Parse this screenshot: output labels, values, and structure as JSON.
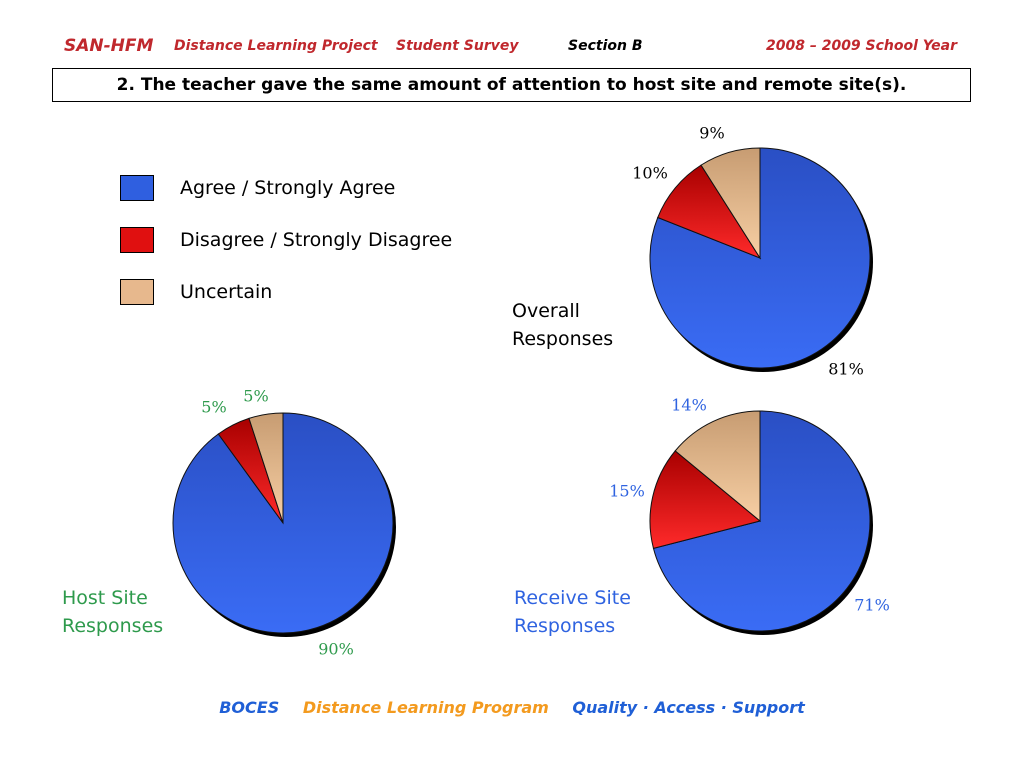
{
  "header": {
    "brand": "SAN-HFM",
    "project": "Distance Learning Project",
    "survey": "Student Survey",
    "section": "Section B",
    "year": "2008 – 2009 School Year"
  },
  "question": "2. The teacher gave the same amount of attention to host site and remote site(s).",
  "legend": [
    {
      "label": "Agree / Strongly Agree",
      "color": "#2f5fe0"
    },
    {
      "label": "Disagree / Strongly Disagree",
      "color": "#e01010"
    },
    {
      "label": "Uncertain",
      "color": "#e7b88d"
    }
  ],
  "chart_data": [
    {
      "type": "pie",
      "title": "Overall Responses",
      "title_lines": [
        "Overall",
        "Responses"
      ],
      "categories": [
        "Agree / Strongly Agree",
        "Disagree / Strongly Disagree",
        "Uncertain"
      ],
      "values": [
        81,
        10,
        9
      ],
      "labels": [
        "81%",
        "10%",
        "9%"
      ],
      "label_color": "#000000"
    },
    {
      "type": "pie",
      "title": "Host Site Responses",
      "title_lines": [
        "Host Site",
        "Responses"
      ],
      "categories": [
        "Agree / Strongly Agree",
        "Disagree / Strongly Disagree",
        "Uncertain"
      ],
      "values": [
        90,
        5,
        5
      ],
      "labels": [
        "90%",
        "5%",
        "5%"
      ],
      "label_color": "#2e9a4c"
    },
    {
      "type": "pie",
      "title": "Receive Site Responses",
      "title_lines": [
        "Receive Site",
        "Responses"
      ],
      "categories": [
        "Agree / Strongly Agree",
        "Disagree / Strongly Disagree",
        "Uncertain"
      ],
      "values": [
        71,
        15,
        14
      ],
      "labels": [
        "71%",
        "15%",
        "14%"
      ],
      "label_color": "#2f63e0"
    }
  ],
  "footer": {
    "boces": "BOCES",
    "program": "Distance Learning Program",
    "tagline": "Quality · Access · Support",
    "colors": {
      "boces": "#1f5fd6",
      "program": "#f39a1e",
      "tagline": "#1f5fd6"
    }
  }
}
